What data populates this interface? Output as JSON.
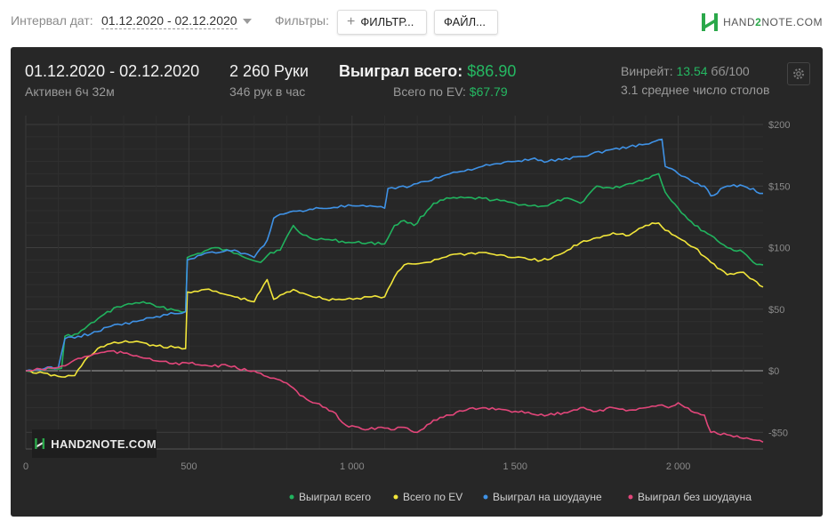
{
  "filters_bar": {
    "date_label": "Интервал дат:",
    "date_value": "01.12.2020 - 02.12.2020",
    "filters_label": "Фильтры:",
    "filter_button": "ФИЛЬТР...",
    "file_button": "ФАЙЛ...",
    "logo_text_a": "HAND",
    "logo_text_b": "2",
    "logo_text_c": "NOTE.COM"
  },
  "summary": {
    "period": "01.12.2020 - 02.12.2020",
    "active": "Активен 6ч 32м",
    "hands": "2 260 Руки",
    "hands_per_hour": "346 рук в час",
    "won_total_label": "Выиграл всего:",
    "won_total_value": "$86.90",
    "ev_label": "Всего по EV:",
    "ev_value": "$67.79",
    "winrate_label": "Винрейт:",
    "winrate_value": "13.54",
    "winrate_unit": "бб/100",
    "tables": "3.1 среднее число столов"
  },
  "watermark": "HAND2NOTE.COM",
  "colors": {
    "won_total": "#21b35e",
    "ev": "#f2e63a",
    "showdown": "#3f92e6",
    "non_showdown": "#e2467a",
    "panel": "#272727"
  },
  "chart_data": {
    "type": "line",
    "xlabel": "",
    "ylabel": "",
    "xlim": [
      0,
      2260
    ],
    "ylim": [
      -60,
      200
    ],
    "x_ticks": [
      {
        "value": 0,
        "label": "0"
      },
      {
        "value": 500,
        "label": "500"
      },
      {
        "value": 1000,
        "label": "1 000"
      },
      {
        "value": 1500,
        "label": "1 500"
      },
      {
        "value": 2000,
        "label": "2 000"
      }
    ],
    "y_ticks": [
      {
        "value": 200,
        "label": "$200"
      },
      {
        "value": 150,
        "label": "$150"
      },
      {
        "value": 100,
        "label": "$100"
      },
      {
        "value": 50,
        "label": "$50"
      },
      {
        "value": 0,
        "label": "$0"
      },
      {
        "value": -50,
        "label": "-$50"
      }
    ],
    "grid": true,
    "legend_position": "bottom-right",
    "series": [
      {
        "name": "Выиграл всего",
        "color": "#21b35e",
        "x": [
          0,
          110,
          120,
          160,
          220,
          280,
          360,
          400,
          490,
          495,
          580,
          650,
          720,
          750,
          780,
          820,
          840,
          870,
          940,
          1000,
          1050,
          1100,
          1130,
          1160,
          1190,
          1250,
          1300,
          1400,
          1500,
          1550,
          1600,
          1650,
          1700,
          1750,
          1800,
          1850,
          1900,
          1940,
          1960,
          2000,
          2050,
          2100,
          2150,
          2200,
          2230,
          2260
        ],
        "values": [
          0,
          2,
          28,
          30,
          42,
          52,
          56,
          52,
          48,
          92,
          100,
          95,
          88,
          96,
          98,
          118,
          112,
          108,
          106,
          104,
          104,
          103,
          118,
          122,
          118,
          136,
          140,
          140,
          136,
          134,
          134,
          140,
          136,
          150,
          148,
          152,
          156,
          160,
          145,
          132,
          118,
          110,
          100,
          96,
          88,
          86
        ]
      },
      {
        "name": "Всего по EV",
        "color": "#f2e63a",
        "x": [
          0,
          110,
          150,
          180,
          220,
          260,
          340,
          400,
          490,
          495,
          550,
          640,
          700,
          740,
          760,
          820,
          860,
          920,
          980,
          1050,
          1100,
          1130,
          1160,
          1230,
          1300,
          1400,
          1500,
          1550,
          1600,
          1650,
          1700,
          1750,
          1800,
          1850,
          1900,
          1940,
          1960,
          2000,
          2050,
          2100,
          2150,
          2200,
          2230,
          2260
        ],
        "values": [
          0,
          -5,
          -4,
          8,
          18,
          22,
          24,
          20,
          18,
          64,
          66,
          60,
          56,
          74,
          58,
          66,
          62,
          58,
          58,
          60,
          60,
          76,
          86,
          88,
          94,
          96,
          92,
          90,
          90,
          96,
          104,
          108,
          112,
          110,
          118,
          120,
          114,
          108,
          100,
          88,
          78,
          80,
          74,
          68
        ]
      },
      {
        "name": "Выиграл на шоудауне",
        "color": "#3f92e6",
        "x": [
          0,
          100,
          120,
          160,
          200,
          260,
          340,
          400,
          490,
          495,
          560,
          640,
          700,
          740,
          760,
          800,
          840,
          900,
          1000,
          1100,
          1110,
          1180,
          1200,
          1300,
          1400,
          1500,
          1550,
          1600,
          1700,
          1800,
          1850,
          1900,
          1950,
          1960,
          2000,
          2040,
          2080,
          2100,
          2150,
          2200,
          2260
        ],
        "values": [
          0,
          3,
          26,
          28,
          30,
          36,
          40,
          44,
          48,
          90,
          96,
          98,
          92,
          106,
          124,
          128,
          130,
          132,
          134,
          132,
          148,
          150,
          152,
          160,
          166,
          170,
          172,
          170,
          174,
          180,
          182,
          184,
          188,
          166,
          160,
          154,
          150,
          142,
          150,
          150,
          144
        ]
      },
      {
        "name": "Выиграл без шоудауна",
        "color": "#e2467a",
        "x": [
          0,
          80,
          120,
          160,
          220,
          260,
          320,
          380,
          440,
          500,
          560,
          620,
          680,
          720,
          760,
          800,
          840,
          880,
          920,
          940,
          980,
          1040,
          1080,
          1120,
          1160,
          1200,
          1250,
          1300,
          1350,
          1400,
          1450,
          1500,
          1550,
          1600,
          1650,
          1700,
          1750,
          1800,
          1850,
          1900,
          1940,
          1970,
          2000,
          2050,
          2080,
          2100,
          2150,
          2200,
          2260
        ],
        "values": [
          0,
          2,
          4,
          10,
          14,
          16,
          13,
          10,
          6,
          6,
          4,
          4,
          0,
          -2,
          -6,
          -10,
          -20,
          -26,
          -30,
          -33,
          -44,
          -48,
          -46,
          -48,
          -46,
          -50,
          -40,
          -36,
          -32,
          -30,
          -31,
          -33,
          -35,
          -36,
          -34,
          -30,
          -33,
          -30,
          -32,
          -30,
          -28,
          -30,
          -26,
          -34,
          -36,
          -50,
          -52,
          -55,
          -58
        ]
      }
    ]
  }
}
